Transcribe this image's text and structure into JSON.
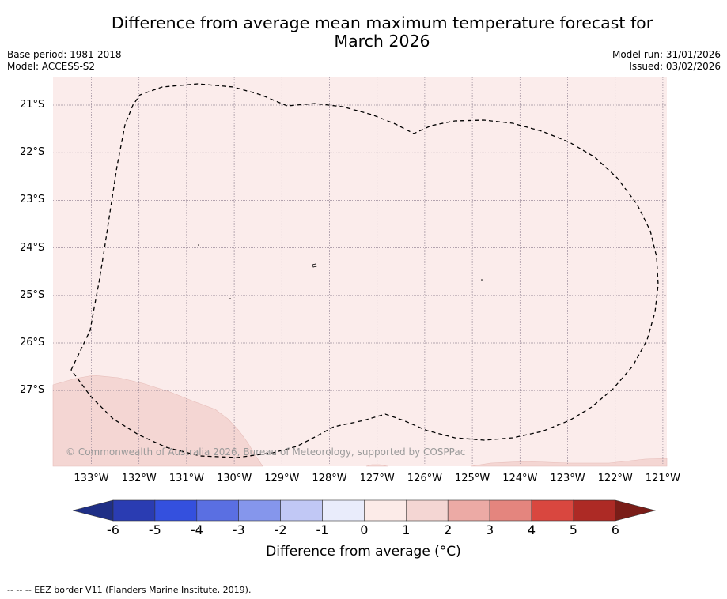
{
  "title": {
    "line1": "Difference from average mean maximum temperature forecast for",
    "line2": "March 2026"
  },
  "meta": {
    "base_period": "Base period: 1981-2018",
    "model": "Model: ACCESS-S2",
    "model_run": "Model run: 31/01/2026",
    "issued": "Issued: 03/02/2026"
  },
  "map": {
    "latitude_labels": [
      "21°S",
      "22°S",
      "23°S",
      "24°S",
      "25°S",
      "26°S",
      "27°S"
    ],
    "longitude_labels": [
      "133°W",
      "132°W",
      "131°W",
      "130°W",
      "129°W",
      "128°W",
      "127°W",
      "126°W",
      "125°W",
      "124°W",
      "123°W",
      "122°W",
      "121°W"
    ],
    "copyright": "© Commonwealth of Australia 2026, Bureau of Meteorology, supported by COSPPac",
    "colors": {
      "background_anomaly": "#fbeceb",
      "warmer_patch": "#f4d6d3"
    }
  },
  "colorbar": {
    "ticks": [
      "-6",
      "-5",
      "-4",
      "-3",
      "-2",
      "-1",
      "0",
      "1",
      "2",
      "3",
      "4",
      "5",
      "6"
    ],
    "colors": [
      "#1f2f86",
      "#2a3cb2",
      "#3450de",
      "#5a6fe2",
      "#8596ec",
      "#c1c8f5",
      "#e9ecfb",
      "#fcebe8",
      "#f4d6d3",
      "#ecaaa5",
      "#e4857e",
      "#d9473f",
      "#ad2a25",
      "#7a1d18"
    ],
    "label": "Difference from average (°C)"
  },
  "legend_note": "--  --  -- EEZ border V11 (Flanders Marine Institute, 2019)."
}
